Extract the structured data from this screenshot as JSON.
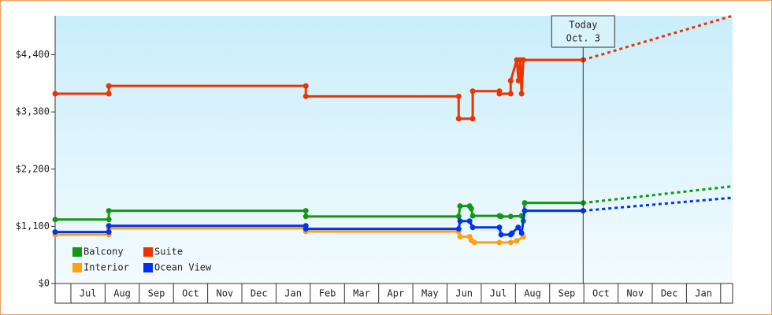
{
  "chart_data": {
    "type": "line",
    "ylim": [
      0,
      5150
    ],
    "yticks": [
      {
        "value": 0,
        "label": "$0"
      },
      {
        "value": 1100,
        "label": "$1,100"
      },
      {
        "value": 2200,
        "label": "$2,200"
      },
      {
        "value": 3300,
        "label": "$3,300"
      },
      {
        "value": 4400,
        "label": "$4,400"
      }
    ],
    "xlim": [
      -0.46,
      19.35
    ],
    "xticks": [
      {
        "value": 0.5,
        "label": "Jul"
      },
      {
        "value": 1.5,
        "label": "Aug"
      },
      {
        "value": 2.5,
        "label": "Sep"
      },
      {
        "value": 3.5,
        "label": "Oct"
      },
      {
        "value": 4.5,
        "label": "Nov"
      },
      {
        "value": 5.5,
        "label": "Dec"
      },
      {
        "value": 6.5,
        "label": "Jan"
      },
      {
        "value": 7.5,
        "label": "Feb"
      },
      {
        "value": 8.5,
        "label": "Mar"
      },
      {
        "value": 9.5,
        "label": "Apr"
      },
      {
        "value": 10.5,
        "label": "May"
      },
      {
        "value": 11.5,
        "label": "Jun"
      },
      {
        "value": 12.5,
        "label": "Jul"
      },
      {
        "value": 13.5,
        "label": "Aug"
      },
      {
        "value": 14.5,
        "label": "Sep"
      },
      {
        "value": 15.5,
        "label": "Oct"
      },
      {
        "value": 16.5,
        "label": "Nov"
      },
      {
        "value": 17.5,
        "label": "Dec"
      },
      {
        "value": 18.5,
        "label": "Jan"
      }
    ],
    "annotation": {
      "x": 14.98,
      "lines": [
        "Today",
        "Oct. 3"
      ]
    },
    "forecast_x": [
      14.98,
      19.35
    ],
    "series": [
      {
        "name": "Balcony",
        "color": "#119911",
        "x": [
          -0.46,
          1.11,
          1.11,
          6.87,
          6.87,
          11.34,
          11.38,
          11.66,
          11.71,
          11.75,
          12.53,
          12.58,
          12.86,
          13.18,
          13.23,
          13.27,
          14.98
        ],
        "values": [
          1230,
          1230,
          1400,
          1400,
          1290,
          1290,
          1490,
          1490,
          1440,
          1300,
          1300,
          1290,
          1290,
          1300,
          1200,
          1550,
          1550
        ],
        "forecast": [
          1550,
          1870
        ]
      },
      {
        "name": "Suite",
        "color": "#ee3300",
        "x": [
          -0.46,
          1.11,
          1.11,
          6.87,
          6.87,
          11.34,
          11.34,
          11.75,
          11.75,
          12.53,
          12.53,
          12.86,
          12.86,
          13.04,
          13.09,
          13.14,
          13.18,
          13.23,
          14.98
        ],
        "values": [
          3650,
          3650,
          3800,
          3800,
          3600,
          3600,
          3170,
          3170,
          3700,
          3700,
          3650,
          3650,
          3900,
          4300,
          3900,
          4300,
          3650,
          4300,
          4300
        ],
        "forecast": [
          4300,
          5150
        ]
      },
      {
        "name": "Interior",
        "color": "#ffa011",
        "x": [
          -0.46,
          1.11,
          1.11,
          6.87,
          6.87,
          11.34,
          11.38,
          11.66,
          11.71,
          11.8,
          12.53,
          12.86,
          13.04,
          13.23
        ],
        "values": [
          940,
          940,
          1060,
          1060,
          1000,
          1000,
          900,
          900,
          830,
          790,
          790,
          790,
          820,
          900
        ]
      },
      {
        "name": "Ocean View",
        "color": "#0033ee",
        "x": [
          -0.46,
          1.11,
          1.11,
          6.87,
          6.87,
          11.34,
          11.38,
          11.66,
          11.75,
          12.53,
          12.58,
          12.86,
          12.9,
          13.08,
          13.18,
          13.27,
          14.98
        ],
        "values": [
          990,
          990,
          1110,
          1110,
          1050,
          1050,
          1200,
          1200,
          1080,
          1080,
          940,
          940,
          970,
          1080,
          970,
          1400,
          1400
        ],
        "forecast": [
          1400,
          1650
        ]
      }
    ]
  }
}
